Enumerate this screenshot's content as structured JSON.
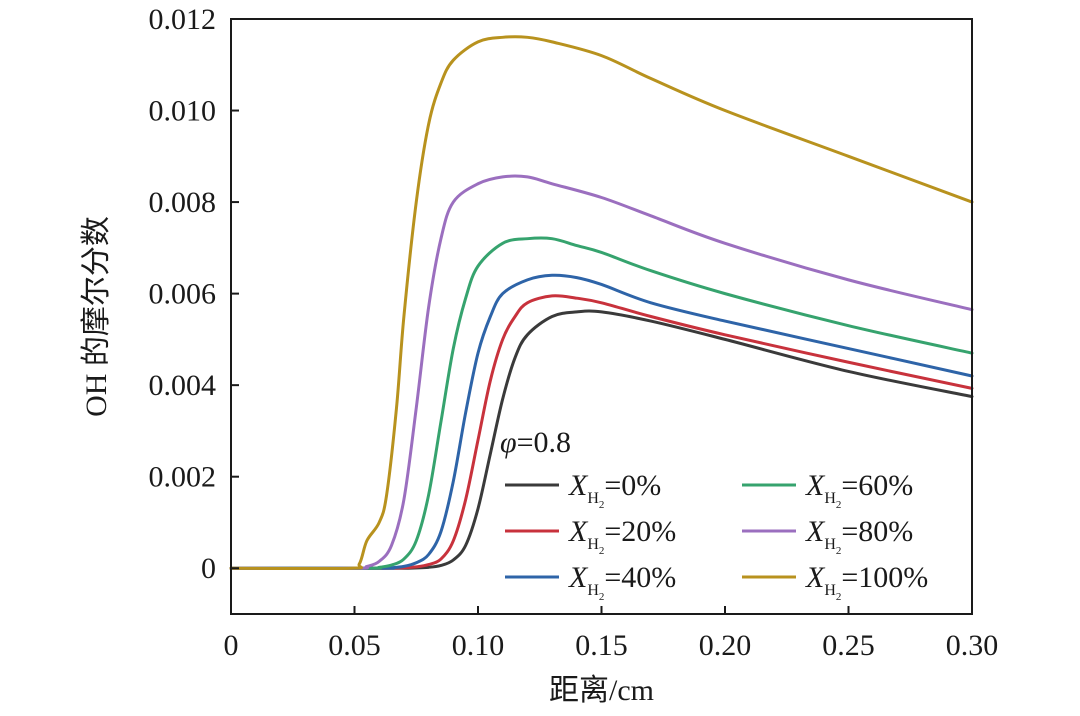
{
  "chart_data": {
    "type": "line",
    "xlabel": "距离/cm",
    "ylabel": "OH 的摩尔分数",
    "xlim": [
      0,
      0.3
    ],
    "ylim": [
      -0.001,
      0.012
    ],
    "x_ticks": [
      "0",
      "0.05",
      "0.10",
      "0.15",
      "0.20",
      "0.25",
      "0.30"
    ],
    "x_tick_values": [
      0,
      0.05,
      0.1,
      0.15,
      0.2,
      0.25,
      0.3
    ],
    "y_ticks": [
      "0",
      "0.002",
      "0.004",
      "0.006",
      "0.008",
      "0.010",
      "0.012"
    ],
    "y_tick_values": [
      0,
      0.002,
      0.004,
      0.006,
      0.008,
      0.01,
      0.012
    ],
    "grid": false,
    "legend_placement": "lower-right",
    "annotation": {
      "symbol": "φ",
      "text": "=0.8"
    },
    "series": [
      {
        "name": "X_H2=0%",
        "legend": {
          "var": "X",
          "sub": "H",
          "subsub": "2",
          "value": "=0%"
        },
        "color": "#3a3a3a",
        "points": [
          [
            0,
            0
          ],
          [
            0.06,
            0
          ],
          [
            0.07,
            0
          ],
          [
            0.08,
            2e-05
          ],
          [
            0.085,
            6e-05
          ],
          [
            0.09,
            0.00018
          ],
          [
            0.095,
            0.0005
          ],
          [
            0.1,
            0.0013
          ],
          [
            0.105,
            0.0025
          ],
          [
            0.11,
            0.0037
          ],
          [
            0.115,
            0.0046
          ],
          [
            0.12,
            0.0051
          ],
          [
            0.13,
            0.0055
          ],
          [
            0.14,
            0.0056
          ],
          [
            0.15,
            0.0056
          ],
          [
            0.17,
            0.0054
          ],
          [
            0.2,
            0.005
          ],
          [
            0.25,
            0.0043
          ],
          [
            0.3,
            0.00375
          ]
        ]
      },
      {
        "name": "X_H2=20%",
        "legend": {
          "var": "X",
          "sub": "H",
          "subsub": "2",
          "value": "=20%"
        },
        "color": "#c8323c",
        "points": [
          [
            0,
            0
          ],
          [
            0.06,
            0
          ],
          [
            0.07,
            1e-05
          ],
          [
            0.075,
            3e-05
          ],
          [
            0.08,
            8e-05
          ],
          [
            0.085,
            0.0002
          ],
          [
            0.09,
            0.0006
          ],
          [
            0.095,
            0.0015
          ],
          [
            0.1,
            0.0028
          ],
          [
            0.105,
            0.0041
          ],
          [
            0.11,
            0.005
          ],
          [
            0.115,
            0.0055
          ],
          [
            0.12,
            0.0058
          ],
          [
            0.13,
            0.00595
          ],
          [
            0.14,
            0.0059
          ],
          [
            0.15,
            0.0058
          ],
          [
            0.17,
            0.0055
          ],
          [
            0.2,
            0.0051
          ],
          [
            0.25,
            0.0045
          ],
          [
            0.3,
            0.00393
          ]
        ]
      },
      {
        "name": "X_H2=40%",
        "legend": {
          "var": "X",
          "sub": "H",
          "subsub": "2",
          "value": "=40%"
        },
        "color": "#2e64a8",
        "points": [
          [
            0,
            0
          ],
          [
            0.06,
            0
          ],
          [
            0.065,
            1e-05
          ],
          [
            0.07,
            4e-05
          ],
          [
            0.075,
            0.00012
          ],
          [
            0.08,
            0.0003
          ],
          [
            0.085,
            0.0008
          ],
          [
            0.09,
            0.0019
          ],
          [
            0.095,
            0.0034
          ],
          [
            0.1,
            0.0047
          ],
          [
            0.105,
            0.0055
          ],
          [
            0.11,
            0.006
          ],
          [
            0.12,
            0.0063
          ],
          [
            0.13,
            0.0064
          ],
          [
            0.14,
            0.00635
          ],
          [
            0.15,
            0.0062
          ],
          [
            0.17,
            0.0058
          ],
          [
            0.2,
            0.0054
          ],
          [
            0.25,
            0.0048
          ],
          [
            0.3,
            0.0042
          ]
        ]
      },
      {
        "name": "X_H2=60%",
        "legend": {
          "var": "X",
          "sub": "H",
          "subsub": "2",
          "value": "=60%"
        },
        "color": "#36a36e",
        "points": [
          [
            0,
            0
          ],
          [
            0.055,
            0
          ],
          [
            0.06,
            2e-05
          ],
          [
            0.065,
            7e-05
          ],
          [
            0.07,
            0.0002
          ],
          [
            0.075,
            0.0006
          ],
          [
            0.08,
            0.0016
          ],
          [
            0.085,
            0.0032
          ],
          [
            0.09,
            0.0048
          ],
          [
            0.095,
            0.0059
          ],
          [
            0.1,
            0.0066
          ],
          [
            0.11,
            0.0071
          ],
          [
            0.12,
            0.0072
          ],
          [
            0.13,
            0.0072
          ],
          [
            0.14,
            0.00705
          ],
          [
            0.15,
            0.0069
          ],
          [
            0.17,
            0.0065
          ],
          [
            0.2,
            0.006
          ],
          [
            0.25,
            0.0053
          ],
          [
            0.3,
            0.0047
          ]
        ]
      },
      {
        "name": "X_H2=80%",
        "legend": {
          "var": "X",
          "sub": "H",
          "subsub": "2",
          "value": "=80%"
        },
        "color": "#9b6fbf",
        "points": [
          [
            0,
            0
          ],
          [
            0.05,
            0
          ],
          [
            0.055,
            4e-05
          ],
          [
            0.06,
            0.00015
          ],
          [
            0.065,
            0.0005
          ],
          [
            0.07,
            0.0015
          ],
          [
            0.075,
            0.0035
          ],
          [
            0.08,
            0.0057
          ],
          [
            0.085,
            0.0072
          ],
          [
            0.09,
            0.008
          ],
          [
            0.1,
            0.0084
          ],
          [
            0.11,
            0.00855
          ],
          [
            0.12,
            0.00855
          ],
          [
            0.13,
            0.0084
          ],
          [
            0.15,
            0.0081
          ],
          [
            0.17,
            0.0077
          ],
          [
            0.2,
            0.0071
          ],
          [
            0.25,
            0.0063
          ],
          [
            0.3,
            0.00565
          ]
        ]
      },
      {
        "name": "X_H2=100%",
        "legend": {
          "var": "X",
          "sub": "H",
          "subsub": "2",
          "value": "=100%"
        },
        "color": "#b8921e",
        "points": [
          [
            0,
            0
          ],
          [
            0.048,
            0
          ],
          [
            0.052,
            0.0001
          ],
          [
            0.055,
            0.0006
          ],
          [
            0.06,
            0.001
          ],
          [
            0.063,
            0.0016
          ],
          [
            0.067,
            0.0035
          ],
          [
            0.07,
            0.0055
          ],
          [
            0.075,
            0.008
          ],
          [
            0.08,
            0.0097
          ],
          [
            0.085,
            0.0106
          ],
          [
            0.09,
            0.0111
          ],
          [
            0.1,
            0.0115
          ],
          [
            0.11,
            0.0116
          ],
          [
            0.12,
            0.0116
          ],
          [
            0.13,
            0.0115
          ],
          [
            0.15,
            0.0112
          ],
          [
            0.17,
            0.0107
          ],
          [
            0.2,
            0.01
          ],
          [
            0.25,
            0.009
          ],
          [
            0.3,
            0.008
          ]
        ]
      }
    ]
  }
}
